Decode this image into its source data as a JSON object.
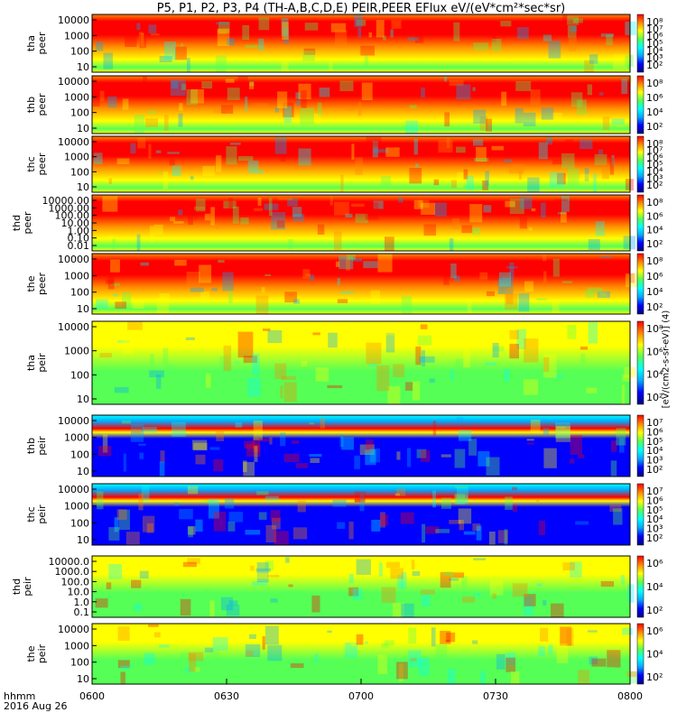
{
  "title": "P5, P1, P2, P3, P4 (TH-A,B,C,D,E) PEIR,PEER EFlux eV/(eV*cm²*sec*sr)",
  "colorbar_label": "[eV/(cm2-s-sr-eV)] (4)",
  "x_axis_caption": "hhmm",
  "date_caption": "2016 Aug 26",
  "chart_data": {
    "type": "heatmap",
    "title": "P5, P1, P2, P3, P4 (TH-A,B,C,D,E) PEIR,PEER EFlux eV/(eV*cm²*sec*sr)",
    "x_axis": {
      "label": "hhmm",
      "range": [
        "0600",
        "0800"
      ],
      "ticks": [
        "0600",
        "0630",
        "0700",
        "0730",
        "0800"
      ]
    },
    "date": "2016 Aug 26",
    "colormap": [
      "#000080",
      "#0000ff",
      "#00aaff",
      "#00ffff",
      "#55ff55",
      "#ffff00",
      "#ff8800",
      "#ff0000"
    ],
    "panels": [
      {
        "name": "tha peer",
        "line1": "tha",
        "line2": "peer",
        "y_scale": "log",
        "y_ticks": [
          "10000",
          "1000",
          "100",
          "10"
        ],
        "cbar_ticks": [
          "10⁸",
          "10⁷",
          "10⁶",
          "10⁵",
          "10⁴",
          "10³",
          "10²"
        ]
      },
      {
        "name": "thb peer",
        "line1": "thb",
        "line2": "peer",
        "y_scale": "log",
        "y_ticks": [
          "10000",
          "1000",
          "100",
          "10"
        ],
        "cbar_ticks": [
          "10⁸",
          "10⁶",
          "10⁴",
          "10²"
        ]
      },
      {
        "name": "thc peer",
        "line1": "thc",
        "line2": "peer",
        "y_scale": "log",
        "y_ticks": [
          "10000",
          "1000",
          "100",
          "10"
        ],
        "cbar_ticks": [
          "10⁸",
          "10⁷",
          "10⁶",
          "10⁵",
          "10⁴",
          "10³",
          "10²"
        ]
      },
      {
        "name": "thd peer",
        "line1": "thd",
        "line2": "peer",
        "y_scale": "log",
        "y_ticks": [
          "10000.00",
          "1000.00",
          "100.00",
          "10.00",
          "1.00",
          "0.10",
          "0.01"
        ],
        "cbar_ticks": [
          "10⁸",
          "10⁶",
          "10⁴",
          "10²"
        ]
      },
      {
        "name": "the peer",
        "line1": "the",
        "line2": "peer",
        "y_scale": "log",
        "y_ticks": [
          "10000",
          "1000",
          "100",
          "10"
        ],
        "cbar_ticks": [
          "10⁸",
          "10⁶",
          "10⁴",
          "10²"
        ]
      },
      {
        "name": "tha peir",
        "line1": "tha",
        "line2": "peir",
        "y_scale": "log",
        "y_ticks": [
          "10000",
          "1000",
          "100",
          "10"
        ],
        "cbar_ticks": [
          "10⁸",
          "10⁶",
          "10⁴",
          "10²"
        ]
      },
      {
        "name": "thb peir",
        "line1": "thb",
        "line2": "peir",
        "y_scale": "log",
        "y_ticks": [
          "10000",
          "1000",
          "100",
          "10"
        ],
        "cbar_ticks": [
          "10⁷",
          "10⁶",
          "10⁵",
          "10⁴",
          "10³",
          "10²"
        ]
      },
      {
        "name": "thc peir",
        "line1": "thc",
        "line2": "peir",
        "y_scale": "log",
        "y_ticks": [
          "10000",
          "1000",
          "100",
          "10"
        ],
        "cbar_ticks": [
          "10⁷",
          "10⁶",
          "10⁵",
          "10⁴",
          "10³",
          "10²"
        ]
      },
      {
        "name": "thd peir",
        "line1": "thd",
        "line2": "peir",
        "y_scale": "log",
        "y_ticks": [
          "10000.0",
          "1000.0",
          "100.0",
          "10.0",
          "1.0",
          "0.1"
        ],
        "cbar_ticks": [
          "10⁶",
          "10⁴",
          "10²"
        ]
      },
      {
        "name": "the peir",
        "line1": "the",
        "line2": "peir",
        "y_scale": "log",
        "y_ticks": [
          "10000",
          "1000",
          "100",
          "10"
        ],
        "cbar_ticks": [
          "10⁶",
          "10⁴",
          "10²"
        ]
      }
    ]
  }
}
